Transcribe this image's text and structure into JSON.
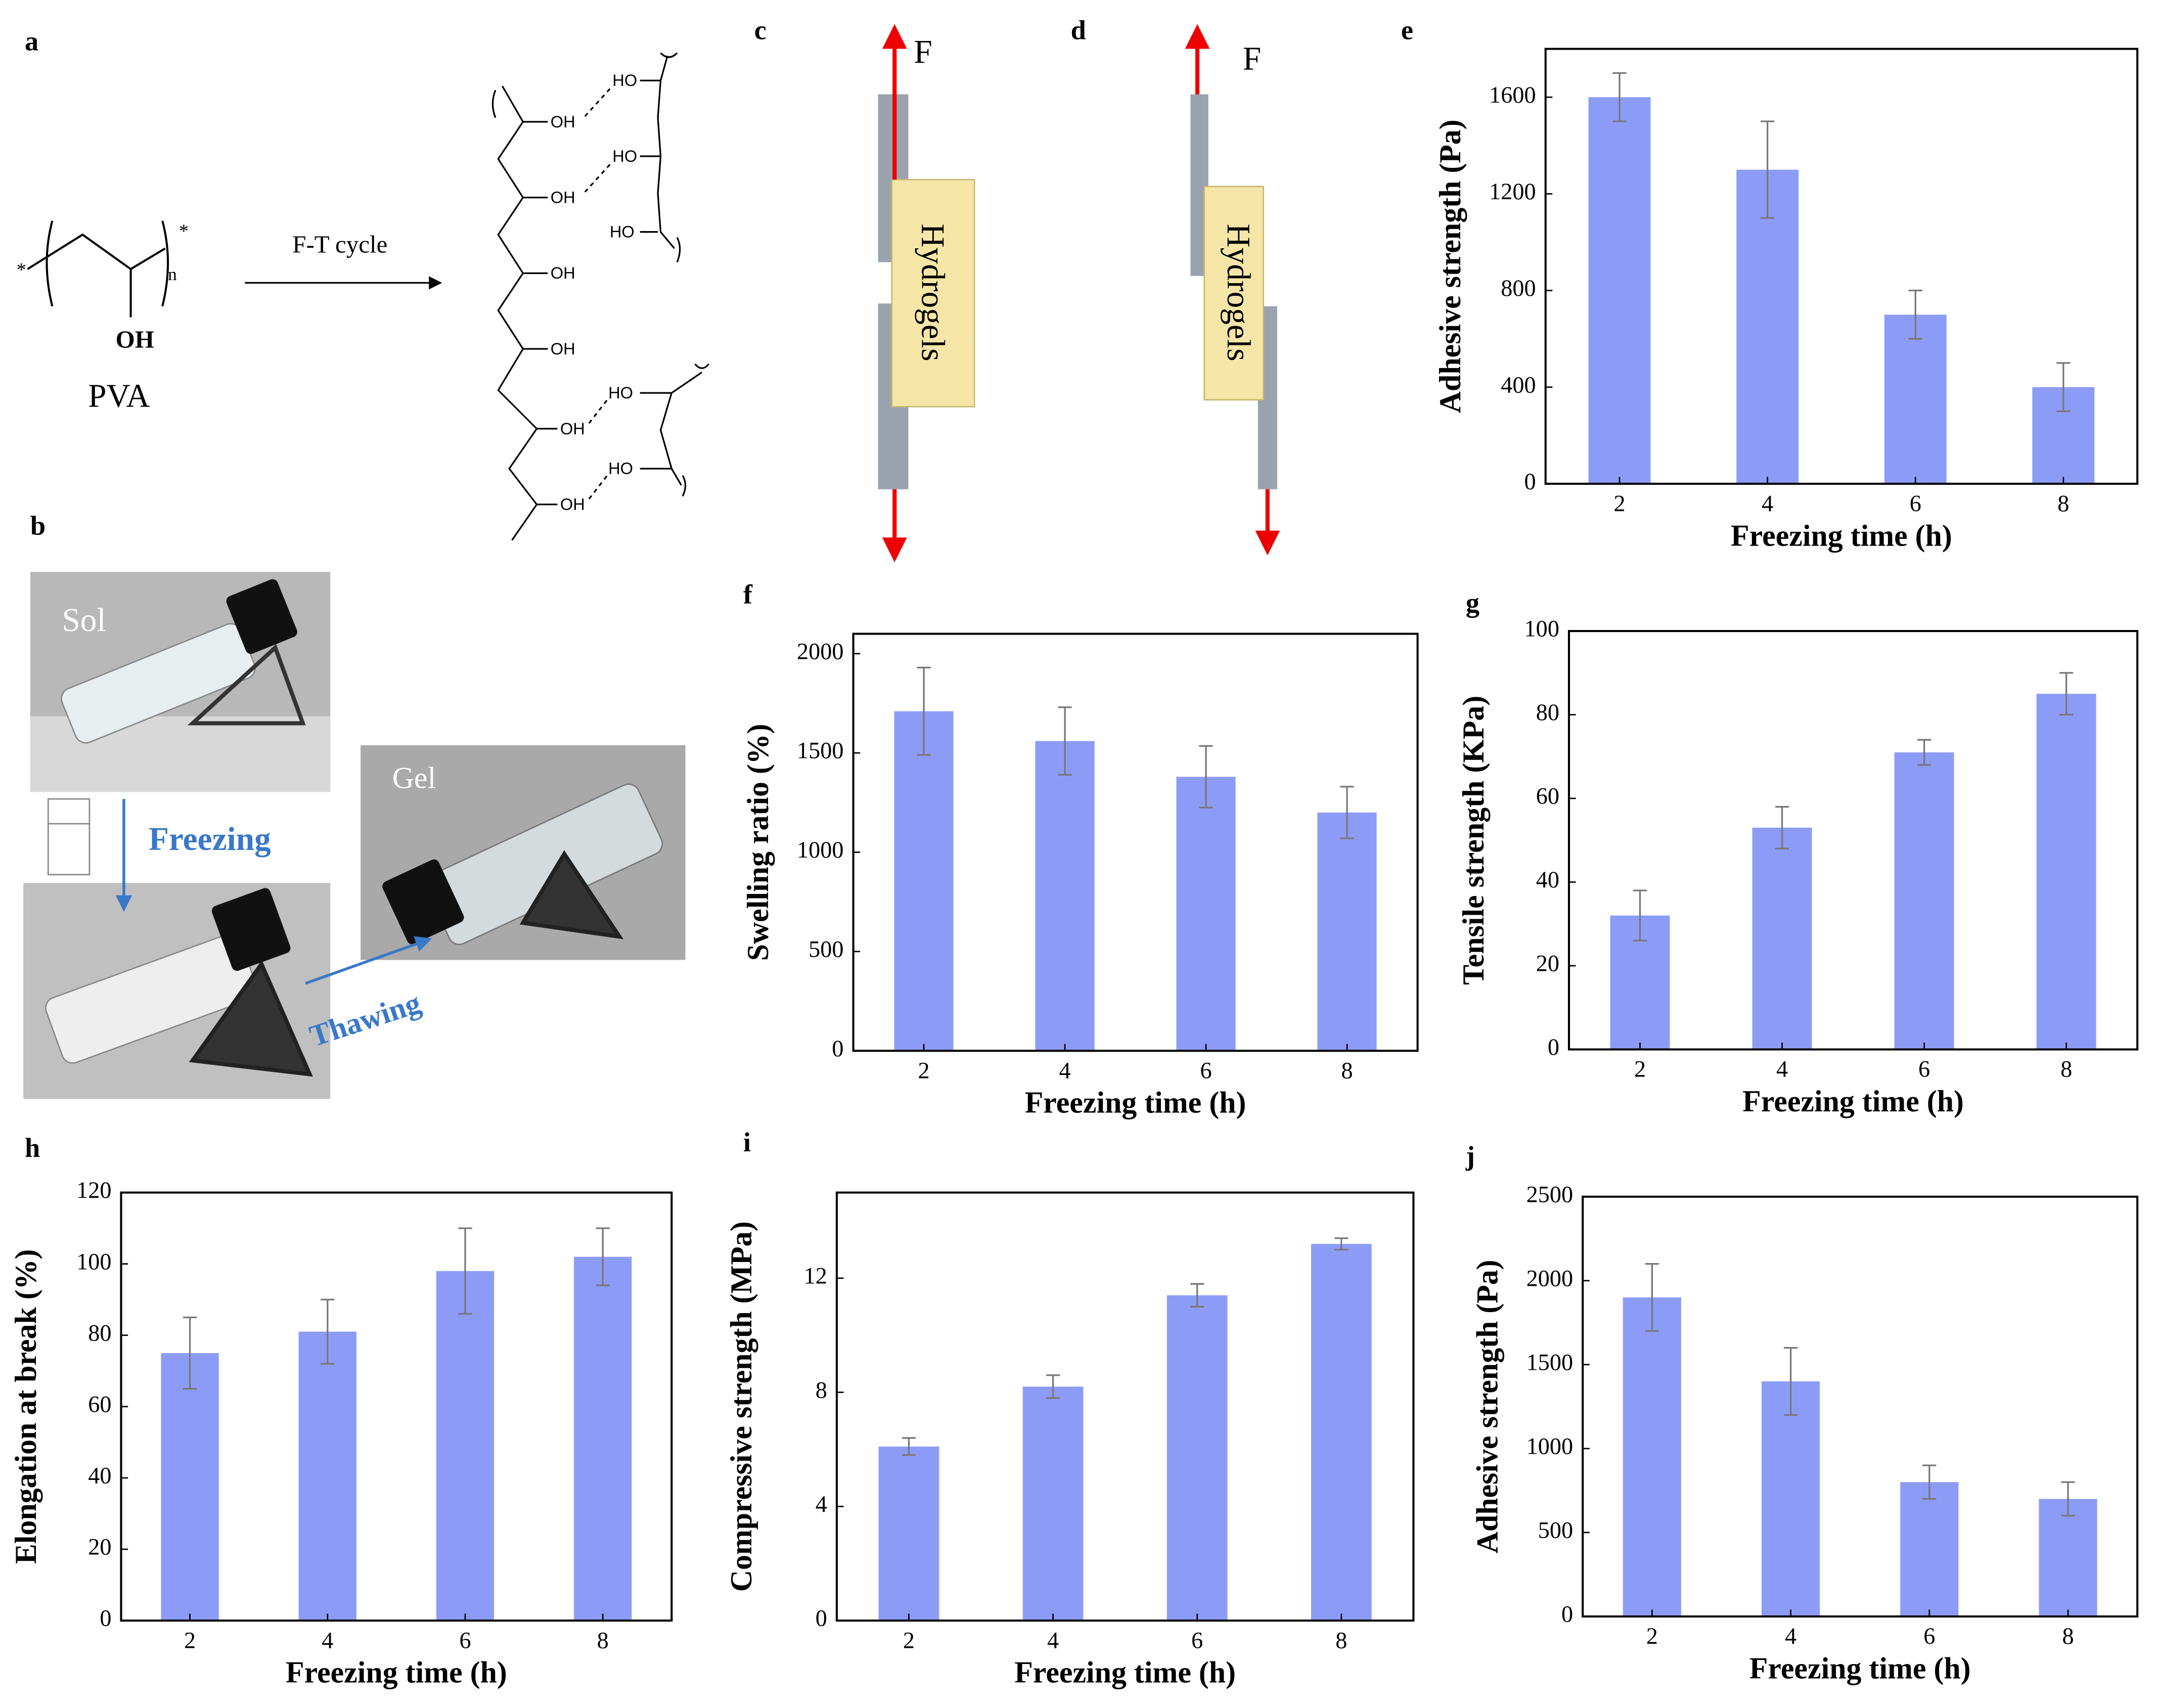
{
  "panels": {
    "a": "a",
    "b": "b",
    "c": "c",
    "d": "d",
    "e": "e",
    "f": "f",
    "g": "g",
    "h": "h",
    "i": "i",
    "j": "j"
  },
  "scheme": {
    "star_left": "*",
    "star_right": "*",
    "repeat": "n",
    "oh": "OH",
    "monomer": "PVA",
    "arrow": "F-T cycle",
    "chain_left": [
      "OH",
      "OH",
      "OH",
      "OH",
      "OH",
      "OH"
    ],
    "chain_right": [
      "HO",
      "HO",
      "HO",
      "HO",
      "HO"
    ]
  },
  "photos": {
    "sol": "Sol",
    "gel": "Gel",
    "freezing": "Freezing",
    "thawing": "Thawing"
  },
  "tests": {
    "c_force": "F",
    "c_gel": "Hydrogels",
    "d_force": "F",
    "d_gel": "Hydrogels"
  },
  "chart_data": [
    {
      "type": "bar",
      "xlabel": "Freezing time (h)",
      "ylabel": "Adhesive strength (Pa)",
      "categories": [
        "2",
        "4",
        "6",
        "8"
      ],
      "values": [
        1600,
        1300,
        700,
        400
      ],
      "errors": [
        100,
        200,
        100,
        100
      ],
      "ylim": [
        0,
        1800
      ],
      "yticks": [
        0,
        400,
        800,
        1200,
        1600
      ],
      "color": "#8c9cf6"
    },
    {
      "type": "bar",
      "xlabel": "Freezing time (h)",
      "ylabel": "Swelling ratio (%)",
      "categories": [
        "2",
        "4",
        "6",
        "8"
      ],
      "values": [
        1710,
        1560,
        1380,
        1200
      ],
      "errors": [
        220,
        170,
        155,
        130
      ],
      "ylim": [
        0,
        2100
      ],
      "yticks": [
        0,
        500,
        1000,
        1500,
        2000
      ],
      "color": "#8c9cf6"
    },
    {
      "type": "bar",
      "xlabel": "Freezing time (h)",
      "ylabel": "Tensile strength (KPa)",
      "categories": [
        "2",
        "4",
        "6",
        "8"
      ],
      "values": [
        32,
        53,
        71,
        85
      ],
      "errors": [
        6,
        5,
        3,
        5
      ],
      "ylim": [
        0,
        100
      ],
      "yticks": [
        0,
        20,
        40,
        60,
        80,
        100
      ],
      "color": "#8c9cf6"
    },
    {
      "type": "bar",
      "xlabel": "Freezing time (h)",
      "ylabel": "Elongation at break (%)",
      "categories": [
        "2",
        "4",
        "6",
        "8"
      ],
      "values": [
        75,
        81,
        98,
        102
      ],
      "errors": [
        10,
        9,
        12,
        8
      ],
      "ylim": [
        0,
        120
      ],
      "yticks": [
        0,
        20,
        40,
        60,
        80,
        100,
        120
      ],
      "color": "#8c9cf6"
    },
    {
      "type": "bar",
      "xlabel": "Freezing time (h)",
      "ylabel": "Compressive strength (MPa)",
      "categories": [
        "2",
        "4",
        "6",
        "8"
      ],
      "values": [
        6.1,
        8.2,
        11.4,
        13.2
      ],
      "errors": [
        0.3,
        0.4,
        0.4,
        0.2
      ],
      "ylim": [
        0,
        15
      ],
      "yticks": [
        0,
        4,
        8,
        12
      ],
      "color": "#8c9cf6"
    },
    {
      "type": "bar",
      "xlabel": "Freezing time (h)",
      "ylabel": "Adhesive strength (Pa)",
      "categories": [
        "2",
        "4",
        "6",
        "8"
      ],
      "values": [
        1900,
        1400,
        800,
        700
      ],
      "errors": [
        200,
        200,
        100,
        100
      ],
      "ylim": [
        0,
        2500
      ],
      "yticks": [
        0,
        500,
        1000,
        1500,
        2000,
        2500
      ],
      "color": "#8c9cf6"
    }
  ]
}
